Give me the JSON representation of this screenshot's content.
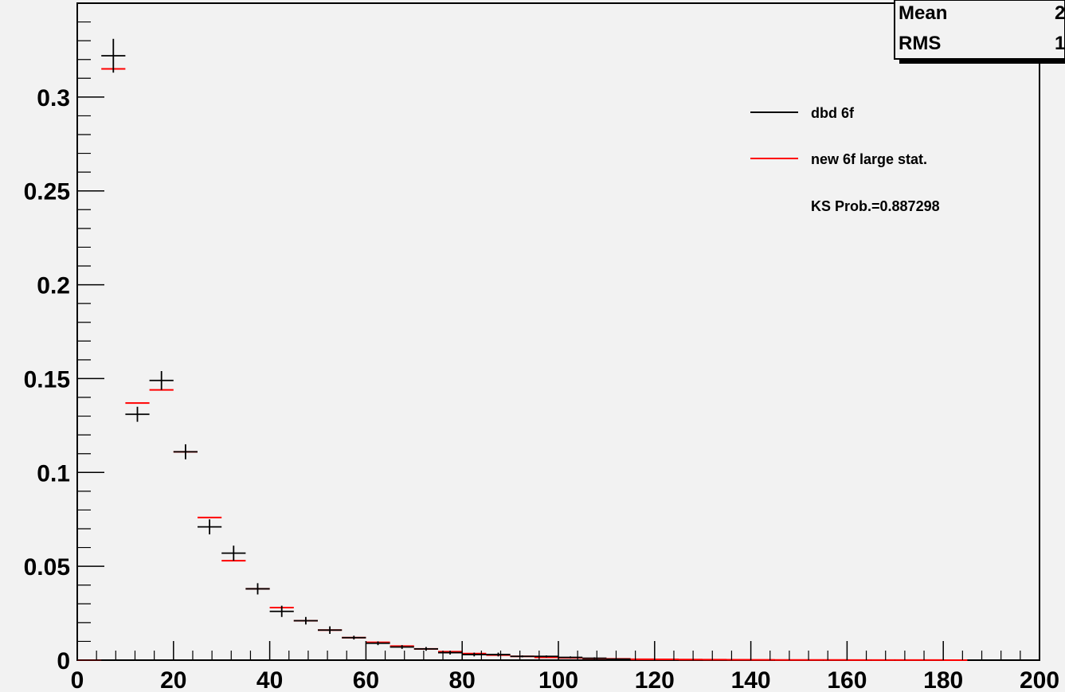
{
  "chart_data": {
    "type": "scatter",
    "title": "",
    "xlabel": "",
    "ylabel": "",
    "xlim": [
      0,
      200
    ],
    "ylim": [
      0,
      0.35
    ],
    "grid": false,
    "legend_position": "right",
    "x_ticks": [
      "0",
      "20",
      "40",
      "60",
      "80",
      "100",
      "120",
      "140",
      "160",
      "180",
      "200"
    ],
    "y_ticks": [
      "0",
      "0.05",
      "0.1",
      "0.15",
      "0.2",
      "0.25",
      "0.3"
    ],
    "stats_box": [
      {
        "label": "Mean",
        "value": "2"
      },
      {
        "label": "RMS",
        "value": "1"
      }
    ],
    "bin_edges_start": 0,
    "bin_width": 5,
    "series": [
      {
        "name": "dbd 6f",
        "color": "#000000",
        "style": "points-with-errors",
        "x": [
          7.5,
          12.5,
          17.5,
          22.5,
          27.5,
          32.5,
          37.5,
          42.5,
          47.5,
          52.5,
          57.5,
          62.5,
          67.5,
          72.5,
          77.5,
          82.5,
          87.5,
          92.5,
          97.5,
          102.5,
          107.5,
          112.5
        ],
        "values": [
          0.322,
          0.131,
          0.149,
          0.111,
          0.071,
          0.057,
          0.038,
          0.026,
          0.021,
          0.016,
          0.012,
          0.009,
          0.007,
          0.006,
          0.004,
          0.003,
          0.003,
          0.002,
          0.002,
          0.0015,
          0.001,
          0.0005
        ],
        "errors": [
          0.009,
          0.004,
          0.005,
          0.004,
          0.004,
          0.004,
          0.003,
          0.003,
          0.002,
          0.002,
          0.001,
          0.001,
          0.001,
          0.001,
          0.001,
          0.001,
          0.001,
          0.0005,
          0.0005,
          0.0005,
          0.0005,
          0.0003
        ]
      },
      {
        "name": "new 6f large stat.",
        "color": "#ff0000",
        "style": "histogram-bins",
        "x": [
          2.5,
          7.5,
          12.5,
          17.5,
          22.5,
          27.5,
          32.5,
          37.5,
          42.5,
          47.5,
          52.5,
          57.5,
          62.5,
          67.5,
          72.5,
          77.5,
          82.5,
          87.5,
          92.5,
          97.5,
          102.5,
          107.5,
          112.5,
          117.5,
          122.5,
          127.5,
          132.5,
          137.5,
          142.5,
          147.5,
          152.5,
          157.5,
          162.5,
          167.5,
          172.5,
          177.5,
          182.5
        ],
        "values": [
          0.0,
          0.315,
          0.137,
          0.144,
          0.111,
          0.076,
          0.053,
          0.038,
          0.028,
          0.021,
          0.016,
          0.012,
          0.0095,
          0.0075,
          0.006,
          0.0045,
          0.0035,
          0.0027,
          0.002,
          0.0015,
          0.0012,
          0.0009,
          0.0007,
          0.0005,
          0.0004,
          0.0003,
          0.00025,
          0.0002,
          0.00015,
          0.0001,
          0.0001,
          8e-05,
          6e-05,
          5e-05,
          4e-05,
          3e-05,
          2e-05
        ]
      }
    ],
    "annotations": [
      "KS Prob.=0.887298"
    ]
  },
  "legend": {
    "items": [
      {
        "label": "dbd 6f",
        "color": "#000000"
      },
      {
        "label": "new 6f large stat.",
        "color": "#ff0000"
      }
    ],
    "note": "KS Prob.=0.887298"
  }
}
